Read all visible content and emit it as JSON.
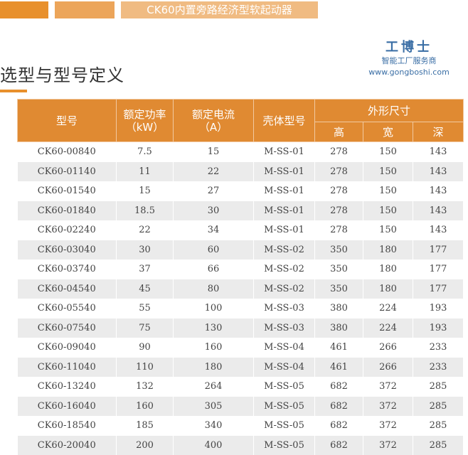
{
  "banner": {
    "title": "CK60内置旁路经济型软起动器"
  },
  "section_title": "选型与型号定义",
  "table": {
    "headers": {
      "model": "型号",
      "power": "额定功率",
      "power_unit": "（kW）",
      "current": "额定电流",
      "current_unit": "（A）",
      "housing": "壳体型号",
      "dims": "外形尺寸",
      "height": "高",
      "width": "宽",
      "depth": "深"
    },
    "rows": [
      [
        "CK60-00840",
        "7.5",
        "15",
        "M-SS-01",
        "278",
        "150",
        "143"
      ],
      [
        "CK60-01140",
        "11",
        "22",
        "M-SS-01",
        "278",
        "150",
        "143"
      ],
      [
        "CK60-01540",
        "15",
        "27",
        "M-SS-01",
        "278",
        "150",
        "143"
      ],
      [
        "CK60-01840",
        "18.5",
        "30",
        "M-SS-01",
        "278",
        "150",
        "143"
      ],
      [
        "CK60-02240",
        "22",
        "34",
        "M-SS-01",
        "278",
        "150",
        "143"
      ],
      [
        "CK60-03040",
        "30",
        "60",
        "M-SS-02",
        "350",
        "180",
        "177"
      ],
      [
        "CK60-03740",
        "37",
        "66",
        "M-SS-02",
        "350",
        "180",
        "177"
      ],
      [
        "CK60-04540",
        "45",
        "80",
        "M-SS-02",
        "350",
        "180",
        "177"
      ],
      [
        "CK60-05540",
        "55",
        "100",
        "M-SS-03",
        "380",
        "224",
        "193"
      ],
      [
        "CK60-07540",
        "75",
        "130",
        "M-SS-03",
        "380",
        "224",
        "193"
      ],
      [
        "CK60-09040",
        "90",
        "160",
        "M-SS-04",
        "461",
        "266",
        "233"
      ],
      [
        "CK60-11040",
        "110",
        "180",
        "M-SS-04",
        "461",
        "266",
        "233"
      ],
      [
        "CK60-13240",
        "132",
        "264",
        "M-SS-05",
        "682",
        "372",
        "285"
      ],
      [
        "CK60-16040",
        "160",
        "305",
        "M-SS-05",
        "682",
        "372",
        "285"
      ],
      [
        "CK60-18540",
        "185",
        "340",
        "M-SS-05",
        "682",
        "372",
        "285"
      ],
      [
        "CK60-20040",
        "200",
        "400",
        "M-SS-05",
        "682",
        "372",
        "285"
      ]
    ]
  },
  "watermark": {
    "brand": "工博士",
    "slogan": "智能工厂服务商",
    "url": "www.gongboshi.com"
  }
}
